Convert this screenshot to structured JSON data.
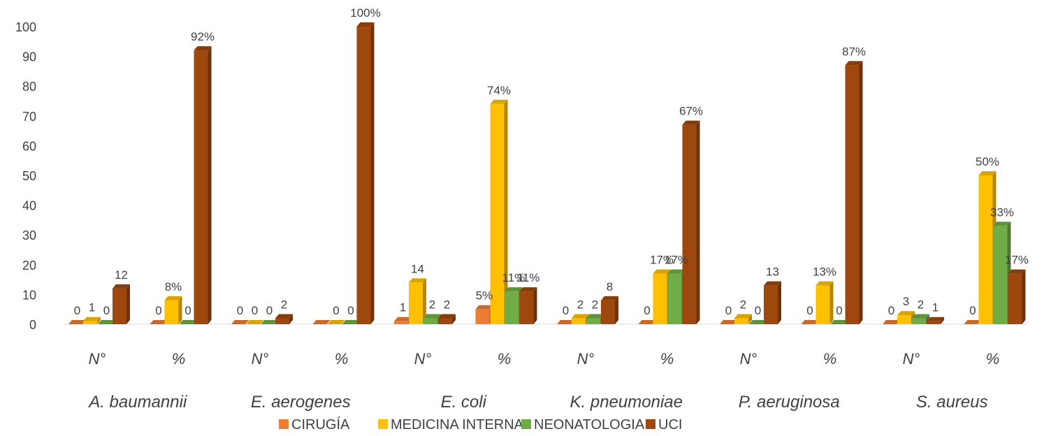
{
  "chart_data": {
    "type": "bar",
    "title": "",
    "xlabel": "",
    "ylabel": "",
    "ylim": [
      0,
      100
    ],
    "yticks": [
      0,
      10,
      20,
      30,
      40,
      50,
      60,
      70,
      80,
      90,
      100
    ],
    "grid": false,
    "legend_position": "bottom",
    "groups": [
      "A. baumannii",
      "E. aerogenes",
      "E. coli",
      "K. pneumoniae",
      "P. aeruginosa",
      "S. aureus"
    ],
    "subcategories": [
      "N°",
      "%"
    ],
    "categories": [
      "A. baumannii N°",
      "A. baumannii %",
      "E. aerogenes N°",
      "E. aerogenes %",
      "E. coli N°",
      "E. coli %",
      "K. pneumoniae N°",
      "K. pneumoniae %",
      "P. aeruginosa N°",
      "P. aeruginosa %",
      "S. aureus N°",
      "S. aureus %"
    ],
    "series": [
      {
        "name": "CIRUGÍA",
        "color": "#ED7D31",
        "values": [
          0,
          0,
          0,
          0,
          1,
          5,
          0,
          0,
          0,
          0,
          0,
          0
        ],
        "labels": [
          "0",
          "0",
          "0",
          "",
          "1",
          "5%",
          "0",
          "0",
          "0",
          "0",
          "0",
          "0"
        ]
      },
      {
        "name": "MEDICINA INTERNA",
        "color": "#FFC000",
        "values": [
          1,
          8,
          0,
          0,
          14,
          74,
          2,
          17,
          2,
          13,
          3,
          50
        ],
        "labels": [
          "1",
          "8%",
          "0",
          "0",
          "14",
          "74%",
          "2",
          "17%",
          "2",
          "13%",
          "3",
          "50%"
        ]
      },
      {
        "name": "NEONATOLOGIA",
        "color": "#70AD47",
        "values": [
          0,
          0,
          0,
          0,
          2,
          11,
          2,
          17,
          0,
          0,
          2,
          33
        ],
        "labels": [
          "0",
          "0",
          "0",
          "0",
          "2",
          "11%",
          "2",
          "17%",
          "0",
          "0",
          "2",
          "33%"
        ]
      },
      {
        "name": "UCI",
        "color": "#9E480E",
        "values": [
          12,
          92,
          2,
          100,
          2,
          11,
          8,
          67,
          13,
          87,
          1,
          17
        ],
        "labels": [
          "12",
          "92%",
          "2",
          "100%",
          "2",
          "11%",
          "8",
          "67%",
          "13",
          "87%",
          "1",
          "17%"
        ]
      }
    ]
  }
}
